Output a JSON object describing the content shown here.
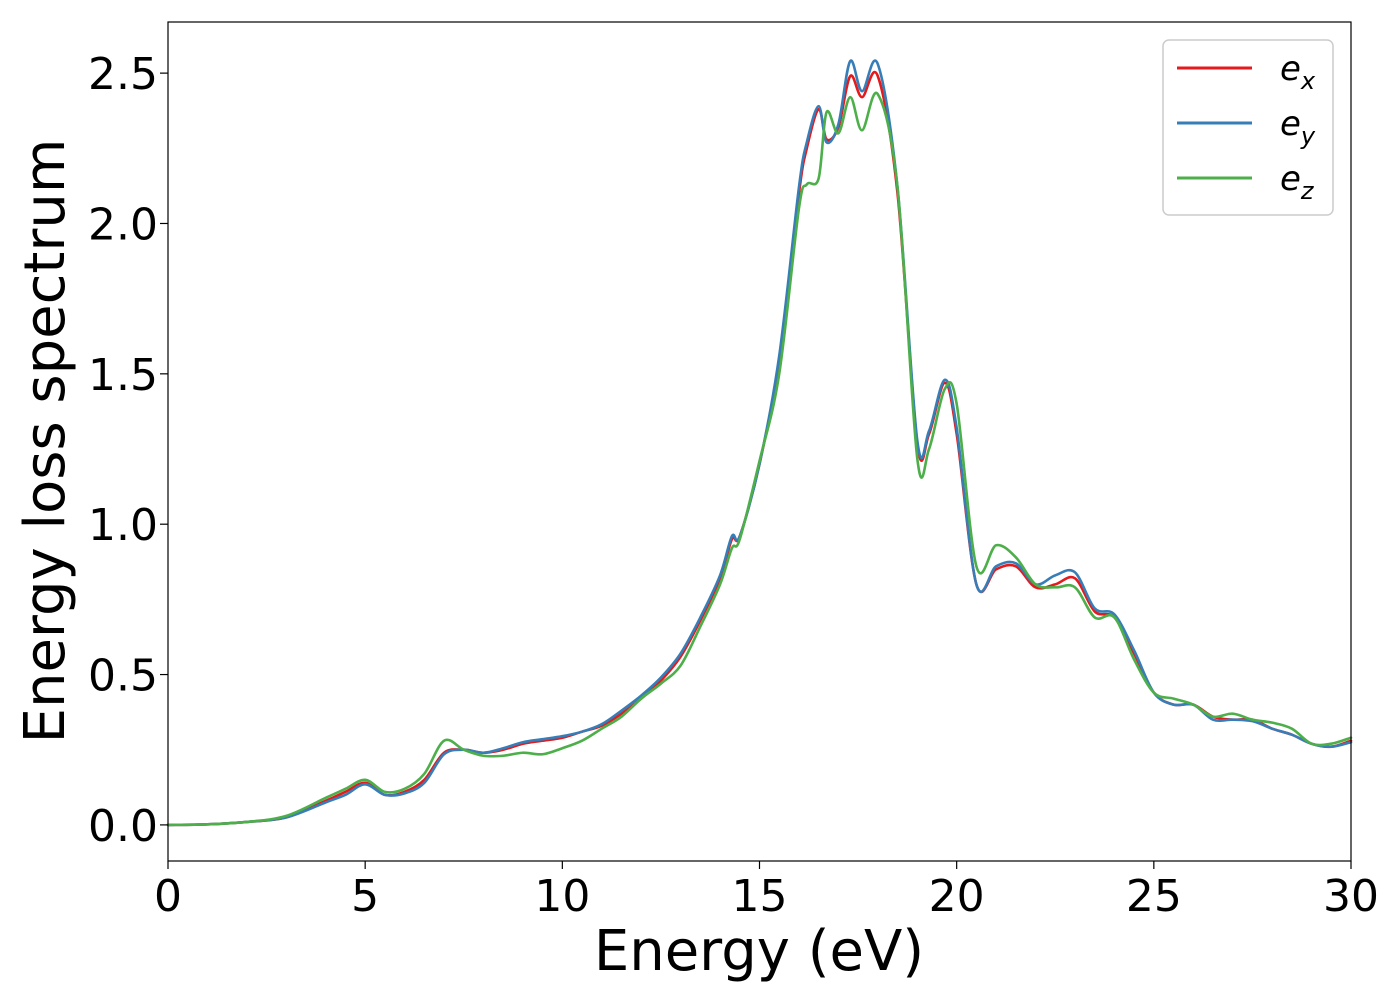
{
  "chart_data": {
    "type": "line",
    "xlabel": "Energy (eV)",
    "ylabel": "Energy loss spectrum",
    "xlim": [
      0,
      30
    ],
    "ylim": [
      -0.12,
      2.67
    ],
    "xticks": [
      0,
      5,
      10,
      15,
      20,
      25,
      30
    ],
    "xtick_labels": [
      "0",
      "5",
      "10",
      "15",
      "20",
      "25",
      "30"
    ],
    "yticks": [
      0.0,
      0.5,
      1.0,
      1.5,
      2.0,
      2.5
    ],
    "ytick_labels": [
      "0.0",
      "0.5",
      "1.0",
      "1.5",
      "2.0",
      "2.5"
    ],
    "grid": false,
    "legend_position": "top-right",
    "x": [
      0,
      1,
      2,
      3,
      4,
      4.5,
      5,
      5.5,
      6,
      6.5,
      7,
      7.5,
      8,
      8.5,
      9,
      9.5,
      10,
      10.5,
      11,
      11.5,
      12,
      12.5,
      13,
      13.5,
      14,
      14.3,
      14.5,
      15,
      15.5,
      16,
      16.2,
      16.5,
      16.7,
      17,
      17.3,
      17.6,
      18,
      18.5,
      19,
      19.3,
      19.7,
      20,
      20.5,
      21,
      21.5,
      22,
      22.5,
      23,
      23.5,
      24,
      24.5,
      25,
      25.5,
      26,
      26.5,
      27,
      27.5,
      28,
      28.5,
      29,
      29.5,
      30
    ],
    "series": [
      {
        "name": "e",
        "subscript": "x",
        "color": "#e41a1c",
        "values": [
          0.0,
          0.002,
          0.01,
          0.025,
          0.08,
          0.11,
          0.14,
          0.1,
          0.11,
          0.15,
          0.24,
          0.25,
          0.24,
          0.25,
          0.27,
          0.28,
          0.29,
          0.31,
          0.33,
          0.37,
          0.42,
          0.48,
          0.56,
          0.68,
          0.82,
          0.95,
          0.96,
          1.2,
          1.55,
          2.1,
          2.25,
          2.38,
          2.28,
          2.32,
          2.49,
          2.42,
          2.49,
          2.1,
          1.27,
          1.3,
          1.47,
          1.3,
          0.8,
          0.85,
          0.86,
          0.79,
          0.8,
          0.82,
          0.71,
          0.69,
          0.57,
          0.44,
          0.4,
          0.4,
          0.36,
          0.35,
          0.35,
          0.32,
          0.3,
          0.27,
          0.26,
          0.28
        ]
      },
      {
        "name": "e",
        "subscript": "y",
        "color": "#377eb8",
        "values": [
          0.0,
          0.002,
          0.01,
          0.025,
          0.075,
          0.1,
          0.135,
          0.1,
          0.105,
          0.14,
          0.235,
          0.25,
          0.24,
          0.255,
          0.275,
          0.285,
          0.295,
          0.31,
          0.335,
          0.38,
          0.43,
          0.49,
          0.57,
          0.69,
          0.83,
          0.96,
          0.96,
          1.2,
          1.56,
          2.12,
          2.27,
          2.39,
          2.27,
          2.33,
          2.54,
          2.44,
          2.53,
          2.12,
          1.28,
          1.31,
          1.48,
          1.32,
          0.8,
          0.86,
          0.87,
          0.8,
          0.83,
          0.84,
          0.72,
          0.7,
          0.58,
          0.44,
          0.4,
          0.4,
          0.35,
          0.35,
          0.345,
          0.32,
          0.3,
          0.27,
          0.26,
          0.275
        ]
      },
      {
        "name": "e",
        "subscript": "z",
        "color": "#4daf4a",
        "values": [
          0.0,
          0.002,
          0.01,
          0.03,
          0.09,
          0.12,
          0.15,
          0.11,
          0.12,
          0.17,
          0.28,
          0.25,
          0.23,
          0.23,
          0.24,
          0.235,
          0.255,
          0.28,
          0.32,
          0.36,
          0.42,
          0.47,
          0.53,
          0.66,
          0.8,
          0.92,
          0.95,
          1.21,
          1.5,
          2.05,
          2.13,
          2.15,
          2.37,
          2.3,
          2.42,
          2.31,
          2.43,
          2.12,
          1.22,
          1.25,
          1.45,
          1.4,
          0.86,
          0.93,
          0.89,
          0.8,
          0.79,
          0.79,
          0.69,
          0.69,
          0.55,
          0.44,
          0.42,
          0.4,
          0.36,
          0.37,
          0.35,
          0.34,
          0.32,
          0.27,
          0.27,
          0.29
        ]
      }
    ]
  }
}
